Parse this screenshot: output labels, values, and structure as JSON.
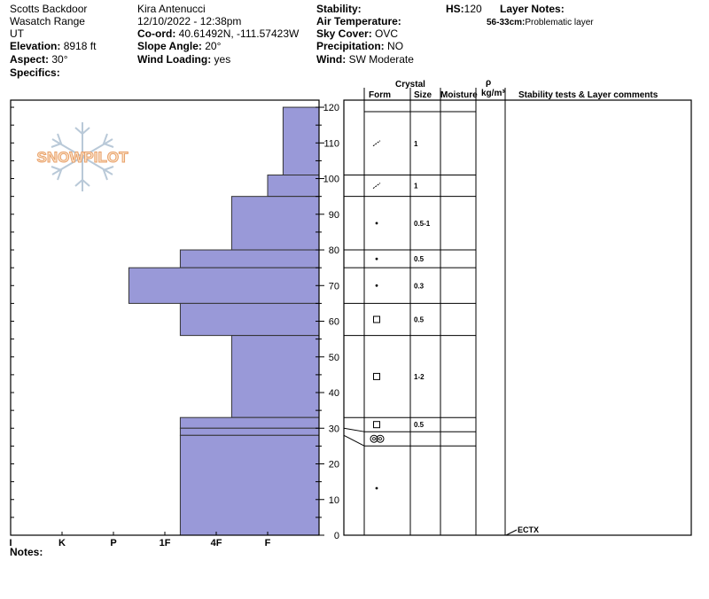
{
  "header": {
    "location": "Scotts Backdoor",
    "range": "Wasatch Range",
    "state": "UT",
    "elevation_label": "Elevation:",
    "elevation_value": "8918 ft",
    "aspect_label": "Aspect:",
    "aspect_value": "30°",
    "specifics_label": "Specifics:",
    "observer": "Kira Antenucci",
    "datetime": "12/10/2022 - 12:38pm",
    "coord_label": "Co-ord:",
    "coord_value": "40.61492N, -111.57423W",
    "slope_label": "Slope Angle:",
    "slope_value": "20°",
    "wind_loading_label": "Wind Loading:",
    "wind_loading_value": "yes",
    "stability_label": "Stability:",
    "air_temp_label": "Air Temperature:",
    "sky_label": "Sky Cover:",
    "sky_value": "OVC",
    "precip_label": "Precipitation:",
    "precip_value": "NO",
    "wind_label": "Wind:",
    "wind_value": "SW Moderate",
    "hs_label": "HS:",
    "hs_value": "120",
    "layer_notes_label": "Layer Notes:",
    "layer_note_range": "56-33cm:",
    "layer_note_text": "Problematic layer"
  },
  "logo_text": "SNOWPILOT",
  "table_headers": {
    "crystal": "Crystal",
    "form": "Form",
    "size": "Size",
    "moisture": "Moisture",
    "rho": "ρ",
    "density_unit": "kg/m³",
    "comments": "Stability tests & Layer comments"
  },
  "notes_label": "Notes:",
  "chart_data": {
    "type": "bar",
    "orientation": "horizontal",
    "xlabel": "",
    "ylabel": "",
    "ylim": [
      0,
      122
    ],
    "y_ticks": [
      0,
      10,
      20,
      30,
      40,
      50,
      60,
      70,
      80,
      90,
      100,
      110,
      120
    ],
    "hardness_scale": [
      "I",
      "K",
      "P",
      "1F",
      "4F",
      "F"
    ],
    "hardness_scale_values": [
      6,
      5,
      4,
      3,
      2,
      1
    ],
    "hardness_layers": [
      {
        "top": 120,
        "bottom": 101,
        "hardness": 0.7
      },
      {
        "top": 101,
        "bottom": 95,
        "hardness": 1.0
      },
      {
        "top": 95,
        "bottom": 80,
        "hardness": 1.7
      },
      {
        "top": 80,
        "bottom": 75,
        "hardness": 2.7
      },
      {
        "top": 75,
        "bottom": 65,
        "hardness": 3.7
      },
      {
        "top": 65,
        "bottom": 56,
        "hardness": 2.7
      },
      {
        "top": 56,
        "bottom": 33,
        "hardness": 1.7
      },
      {
        "top": 33,
        "bottom": 30,
        "hardness": 2.7
      },
      {
        "top": 30,
        "bottom": 28,
        "hardness": 2.7
      },
      {
        "top": 28,
        "bottom": 0,
        "hardness": 2.7
      }
    ],
    "layer_boundaries": [
      101,
      95,
      80,
      75,
      65,
      56,
      33,
      30,
      28
    ],
    "crystal_rows": [
      {
        "boundary_top": 120,
        "boundary_bottom": 101,
        "form": "decomposing",
        "size": "1"
      },
      {
        "boundary_top": 101,
        "boundary_bottom": 95,
        "form": "decomposing",
        "size": "1"
      },
      {
        "boundary_top": 95,
        "boundary_bottom": 80,
        "form": "rounded",
        "size": "0.5-1"
      },
      {
        "boundary_top": 80,
        "boundary_bottom": 75,
        "form": "rounded",
        "size": "0.5"
      },
      {
        "boundary_top": 75,
        "boundary_bottom": 65,
        "form": "rounded",
        "size": "0.3"
      },
      {
        "boundary_top": 65,
        "boundary_bottom": 56,
        "form": "faceted",
        "size": "0.5"
      },
      {
        "boundary_top": 56,
        "boundary_bottom": 33,
        "form": "faceted",
        "size": "1-2"
      },
      {
        "boundary_top": 33,
        "boundary_bottom": 30,
        "form": "faceted",
        "size": "0.5"
      },
      {
        "boundary_top": 30,
        "boundary_bottom": 28,
        "form": "crust",
        "size": ""
      },
      {
        "boundary_top": 28,
        "boundary_bottom": 0,
        "form": "rounded",
        "size": ""
      }
    ],
    "stability_tests": [
      {
        "label": "ECTX",
        "depth": 0
      }
    ]
  }
}
